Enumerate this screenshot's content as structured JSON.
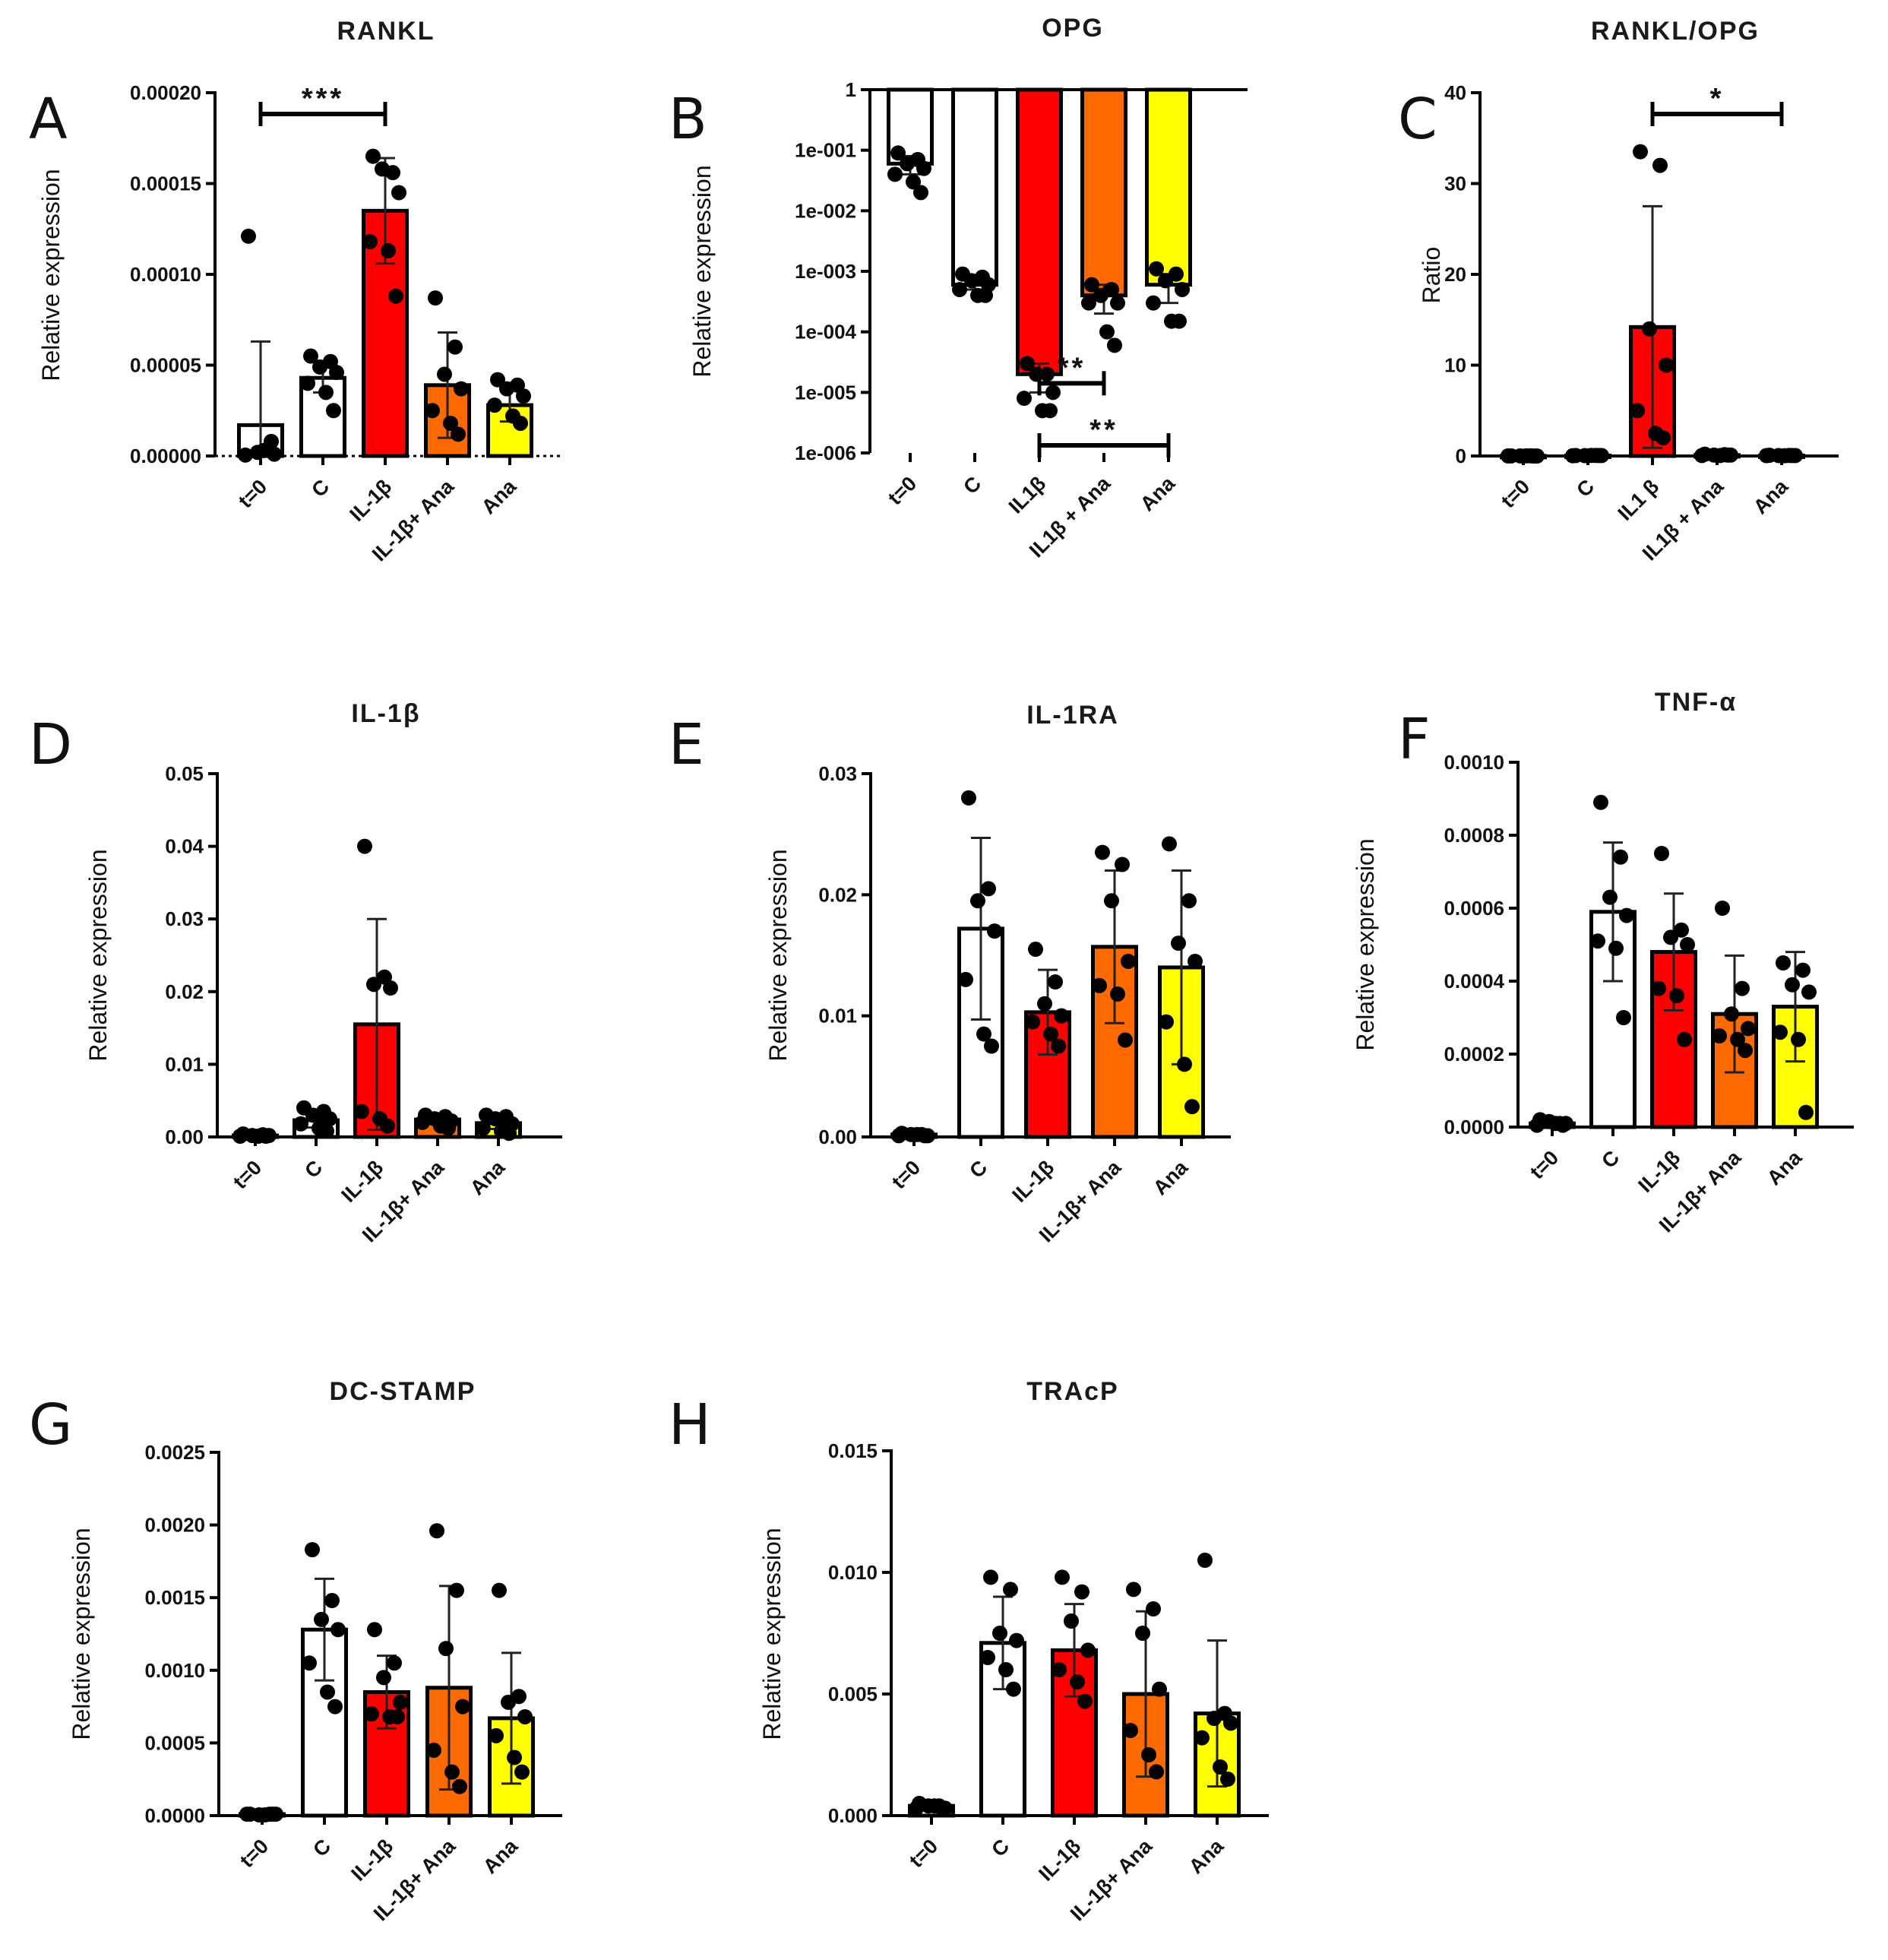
{
  "colors": {
    "t0": "#ffffff",
    "C": "#ffffff",
    "IL1b": "#ff0000",
    "IL1bAna": "#ff6a00",
    "Ana": "#ffff00",
    "ink": "#000000"
  },
  "chart_data": [
    {
      "letter": "A",
      "title": "RANKL",
      "type": "bar",
      "ylabel": "Relative expression",
      "categories": [
        "t=0",
        "C",
        "IL-1β",
        "IL-1β+ Ana",
        "Ana"
      ],
      "ylim": [
        0,
        0.0002
      ],
      "yticks": [
        0,
        5e-05,
        0.0001,
        0.00015,
        0.0002
      ],
      "ytick_labels": [
        "0.00000",
        "0.00005",
        "0.00010",
        "0.00015",
        "0.00020"
      ],
      "values": [
        1.7e-05,
        4.3e-05,
        0.000135,
        3.9e-05,
        2.8e-05
      ],
      "sd": [
        4.6e-05,
        8e-06,
        2.9e-05,
        2.9e-05,
        9e-06
      ],
      "points": [
        [
          0.000121,
          4e-06,
          2e-06,
          1e-06,
          5e-07,
          3e-06,
          8e-06
        ],
        [
          5.5e-05,
          5.2e-05,
          4.9e-05,
          4.6e-05,
          4e-05,
          3.5e-05,
          2.5e-05
        ],
        [
          0.000165,
          0.000156,
          0.000158,
          0.000145,
          0.000118,
          0.000113,
          8.8e-05
        ],
        [
          8.7e-05,
          6e-05,
          4.5e-05,
          3.7e-05,
          2.5e-05,
          1.8e-05,
          1.2e-05
        ],
        [
          4.2e-05,
          3.9e-05,
          3.7e-05,
          3.3e-05,
          2.8e-05,
          2.2e-05,
          1.8e-05
        ]
      ],
      "dotted_baseline": true,
      "significance": [
        {
          "from": 0,
          "to": 2,
          "label": "***"
        }
      ]
    },
    {
      "letter": "B",
      "title": "OPG",
      "type": "bar",
      "ylabel": "Relative expression",
      "yscale": "log",
      "categories": [
        "t=0",
        "C",
        "IL1β",
        "IL1β + Ana",
        "Ana"
      ],
      "ylim": [
        1e-06,
        1
      ],
      "yticks": [
        1,
        0.1,
        0.01,
        0.001,
        0.0001,
        1e-05,
        1e-06
      ],
      "ytick_labels": [
        "1",
        "1e-001",
        "1e-002",
        "1e-003",
        "1e-004",
        "1e-005",
        "1e-006"
      ],
      "values": [
        0.06,
        0.0006,
        2e-05,
        0.0004,
        0.0006
      ],
      "sd": [
        0.02,
        0.0001,
        1e-05,
        0.0002,
        0.0003
      ],
      "points": [
        [
          0.09,
          0.07,
          0.06,
          0.05,
          0.04,
          0.03,
          0.02
        ],
        [
          0.0009,
          0.0008,
          0.0007,
          0.0006,
          0.0005,
          0.0004,
          0.0004
        ],
        [
          3e-05,
          2e-05,
          2e-05,
          1e-05,
          8e-06,
          5e-06,
          5e-06
        ],
        [
          0.0006,
          0.0005,
          0.0004,
          0.0003,
          0.0003,
          0.0001,
          6e-05
        ],
        [
          0.0011,
          0.0009,
          0.0007,
          0.0005,
          0.0003,
          0.00015,
          0.00015
        ]
      ],
      "significance": [
        {
          "from": 2,
          "to": 3,
          "label": "**"
        },
        {
          "from": 2,
          "to": 4,
          "label": "**"
        }
      ]
    },
    {
      "letter": "C",
      "title": "RANKL/OPG",
      "type": "bar",
      "ylabel": "Ratio",
      "categories": [
        "t=0",
        "C",
        "IL1 β",
        "IL1β + Ana",
        "Ana"
      ],
      "ylim": [
        0,
        40
      ],
      "yticks": [
        0,
        10,
        20,
        30,
        40
      ],
      "ytick_labels": [
        "0",
        "10",
        "20",
        "30",
        "40"
      ],
      "values": [
        0.01,
        0.05,
        14.2,
        0.1,
        0.05
      ],
      "sd": [
        0.01,
        0.03,
        13.3,
        0.05,
        0.03
      ],
      "points": [
        [
          0.01,
          0.02,
          0.01,
          0.0,
          0.01,
          0.02,
          0.0
        ],
        [
          0.05,
          0.06,
          0.04,
          0.05,
          0.03,
          0.06,
          0.05
        ],
        [
          33.5,
          32,
          14,
          10,
          5,
          2.5,
          2
        ],
        [
          0.2,
          0.15,
          0.1,
          0.1,
          0.05,
          0.05,
          0.1
        ],
        [
          0.08,
          0.06,
          0.05,
          0.05,
          0.04,
          0.03,
          0.05
        ]
      ],
      "significance": [
        {
          "from": 2,
          "to": 4,
          "label": "*"
        }
      ]
    },
    {
      "letter": "D",
      "title": "IL-1β",
      "type": "bar",
      "ylabel": "Relative expression",
      "categories": [
        "t=0",
        "C",
        "IL-1β",
        "IL-1β+ Ana",
        "Ana"
      ],
      "ylim": [
        0,
        0.05
      ],
      "yticks": [
        0,
        0.01,
        0.02,
        0.03,
        0.04,
        0.05
      ],
      "ytick_labels": [
        "0.00",
        "0.01",
        "0.02",
        "0.03",
        "0.04",
        "0.05"
      ],
      "values": [
        0.0002,
        0.0023,
        0.0155,
        0.0024,
        0.0019
      ],
      "sd": [
        0.0001,
        0.001,
        0.0145,
        0.0006,
        0.0008
      ],
      "points": [
        [
          0.0004,
          0.0003,
          0.0002,
          0.0002,
          0.0001,
          0.0001,
          0.0001
        ],
        [
          0.004,
          0.0035,
          0.003,
          0.0025,
          0.0018,
          0.0012,
          0.0008
        ],
        [
          0.04,
          0.022,
          0.021,
          0.0205,
          0.0035,
          0.0025,
          0.0015
        ],
        [
          0.003,
          0.0028,
          0.0025,
          0.0022,
          0.002,
          0.0015,
          0.0012
        ],
        [
          0.003,
          0.0028,
          0.0025,
          0.0018,
          0.0012,
          0.0008,
          0.0005
        ]
      ]
    },
    {
      "letter": "E",
      "title": "IL-1RA",
      "type": "bar",
      "ylabel": "Relative expression",
      "categories": [
        "t=0",
        "C",
        "IL-1β",
        "IL-1β+ Ana",
        "Ana"
      ],
      "ylim": [
        0,
        0.03
      ],
      "yticks": [
        0,
        0.01,
        0.02,
        0.03
      ],
      "ytick_labels": [
        "0.00",
        "0.01",
        "0.02",
        "0.03"
      ],
      "values": [
        0.0002,
        0.0172,
        0.0103,
        0.0157,
        0.014
      ],
      "sd": [
        0.0001,
        0.0075,
        0.0035,
        0.0063,
        0.008
      ],
      "points": [
        [
          0.0003,
          0.0002,
          0.0002,
          0.0001,
          0.0001,
          0.0002,
          0.0001
        ],
        [
          0.028,
          0.0205,
          0.0195,
          0.017,
          0.013,
          0.0085,
          0.0075
        ],
        [
          0.0155,
          0.0128,
          0.011,
          0.01,
          0.0095,
          0.0085,
          0.0075
        ],
        [
          0.0235,
          0.0225,
          0.0195,
          0.0145,
          0.0125,
          0.0118,
          0.008
        ],
        [
          0.0242,
          0.0195,
          0.016,
          0.0145,
          0.0095,
          0.006,
          0.0025
        ]
      ]
    },
    {
      "letter": "F",
      "title": "TNF-α",
      "type": "bar",
      "ylabel": "Relative expression",
      "categories": [
        "t=0",
        "C",
        "IL-1β",
        "IL-1β+ Ana",
        "Ana"
      ],
      "ylim": [
        0,
        0.001
      ],
      "yticks": [
        0,
        0.0002,
        0.0004,
        0.0006,
        0.0008,
        0.001
      ],
      "ytick_labels": [
        "0.0000",
        "0.0002",
        "0.0004",
        "0.0006",
        "0.0008",
        "0.0010"
      ],
      "values": [
        1e-05,
        0.00059,
        0.00048,
        0.00031,
        0.00033
      ],
      "sd": [
        5e-06,
        0.00019,
        0.00016,
        0.00016,
        0.00015
      ],
      "points": [
        [
          2e-05,
          1e-05,
          1.5e-05,
          1e-05,
          5e-06,
          1e-05,
          5e-06
        ],
        [
          0.00089,
          0.00074,
          0.00063,
          0.00058,
          0.00051,
          0.00049,
          0.0003
        ],
        [
          0.00075,
          0.00054,
          0.00052,
          0.0005,
          0.00038,
          0.00036,
          0.00024
        ],
        [
          0.0006,
          0.00038,
          0.00031,
          0.00027,
          0.00025,
          0.00024,
          0.00021
        ],
        [
          0.00045,
          0.00043,
          0.00039,
          0.00037,
          0.00026,
          0.00024,
          4e-05
        ]
      ]
    },
    {
      "letter": "G",
      "title": "DC-STAMP",
      "type": "bar",
      "ylabel": "Relative expression",
      "categories": [
        "t=0",
        "C",
        "IL-1β",
        "IL-1β+ Ana",
        "Ana"
      ],
      "ylim": [
        0,
        0.0025
      ],
      "yticks": [
        0,
        0.0005,
        0.001,
        0.0015,
        0.002,
        0.0025
      ],
      "ytick_labels": [
        "0.0000",
        "0.0005",
        "0.0010",
        "0.0015",
        "0.0020",
        "0.0025"
      ],
      "values": [
        1e-05,
        0.00128,
        0.00085,
        0.00088,
        0.00067
      ],
      "sd": [
        5e-06,
        0.00035,
        0.00025,
        0.0007,
        0.00045
      ],
      "points": [
        [
          1e-05,
          1e-05,
          5e-06,
          1e-05,
          1e-05,
          5e-06,
          1e-05
        ],
        [
          0.00183,
          0.00148,
          0.00135,
          0.00128,
          0.00105,
          0.00085,
          0.00075
        ],
        [
          0.00128,
          0.00105,
          0.00095,
          0.00078,
          0.0007,
          0.00068,
          0.00068
        ],
        [
          0.00196,
          0.00155,
          0.00115,
          0.00075,
          0.00045,
          0.0003,
          0.0002
        ],
        [
          0.00155,
          0.00082,
          0.00078,
          0.00068,
          0.00055,
          0.0004,
          0.0003
        ]
      ]
    },
    {
      "letter": "H",
      "title": "TRAcP",
      "type": "bar",
      "ylabel": "Relative expression",
      "categories": [
        "t=0",
        "C",
        "IL-1β",
        "IL-1β+ Ana",
        "Ana"
      ],
      "ylim": [
        0,
        0.015
      ],
      "yticks": [
        0,
        0.005,
        0.01,
        0.015
      ],
      "ytick_labels": [
        "0.000",
        "0.005",
        "0.010",
        "0.015"
      ],
      "values": [
        0.0004,
        0.0071,
        0.0068,
        0.005,
        0.0042
      ],
      "sd": [
        0.0001,
        0.0019,
        0.0019,
        0.0034,
        0.003
      ],
      "points": [
        [
          0.0005,
          0.0004,
          0.0004,
          0.0003,
          0.0003,
          0.0004,
          0.0003
        ],
        [
          0.0098,
          0.0093,
          0.0075,
          0.0072,
          0.0065,
          0.006,
          0.0052
        ],
        [
          0.0098,
          0.0092,
          0.008,
          0.0068,
          0.006,
          0.0055,
          0.0047
        ],
        [
          0.0093,
          0.0085,
          0.0075,
          0.0052,
          0.0035,
          0.0025,
          0.0018
        ],
        [
          0.0105,
          0.0042,
          0.004,
          0.0038,
          0.0032,
          0.002,
          0.0015
        ]
      ]
    }
  ]
}
